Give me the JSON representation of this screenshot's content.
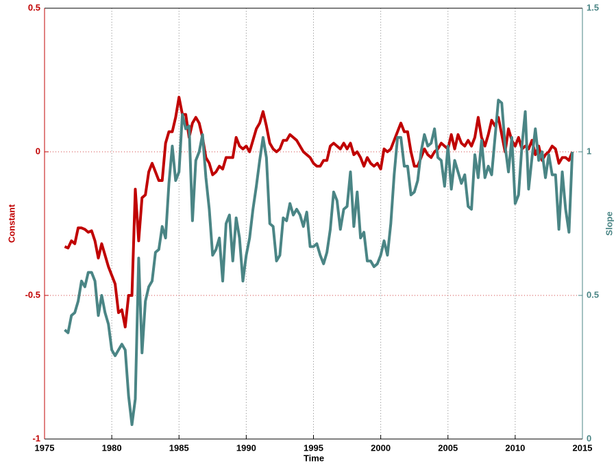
{
  "chart_data": {
    "type": "line",
    "xlabel": "Time",
    "ylabel": "Constant",
    "y2label": "Slope",
    "xlim": [
      1975,
      2015
    ],
    "xticks": [
      1975,
      1980,
      1985,
      1990,
      1995,
      2000,
      2005,
      2010,
      2015
    ],
    "ylim": [
      -1,
      0.5
    ],
    "yticks": [
      -1,
      -0.5,
      0,
      0.5
    ],
    "y2lim": [
      0,
      1.5
    ],
    "y2ticks": [
      0,
      0.5,
      1,
      1.5
    ],
    "grid": true,
    "x": [
      1976.5,
      1976.75,
      1977,
      1977.25,
      1977.5,
      1977.75,
      1978,
      1978.25,
      1978.5,
      1978.75,
      1979,
      1979.25,
      1979.5,
      1979.75,
      1980,
      1980.25,
      1980.5,
      1980.75,
      1981,
      1981.25,
      1981.5,
      1981.75,
      1982,
      1982.25,
      1982.5,
      1982.75,
      1983,
      1983.25,
      1983.5,
      1983.75,
      1984,
      1984.25,
      1984.5,
      1984.75,
      1985,
      1985.25,
      1985.5,
      1985.75,
      1986,
      1986.25,
      1986.5,
      1986.75,
      1987,
      1987.25,
      1987.5,
      1987.75,
      1988,
      1988.25,
      1988.5,
      1988.75,
      1989,
      1989.25,
      1989.5,
      1989.75,
      1990,
      1990.25,
      1990.5,
      1990.75,
      1991,
      1991.25,
      1991.5,
      1991.75,
      1992,
      1992.25,
      1992.5,
      1992.75,
      1993,
      1993.25,
      1993.5,
      1993.75,
      1994,
      1994.25,
      1994.5,
      1994.75,
      1995,
      1995.25,
      1995.5,
      1995.75,
      1996,
      1996.25,
      1996.5,
      1996.75,
      1997,
      1997.25,
      1997.5,
      1997.75,
      1998,
      1998.25,
      1998.5,
      1998.75,
      1999,
      1999.25,
      1999.5,
      1999.75,
      2000,
      2000.25,
      2000.5,
      2000.75,
      2001,
      2001.25,
      2001.5,
      2001.75,
      2002,
      2002.25,
      2002.5,
      2002.75,
      2003,
      2003.25,
      2003.5,
      2003.75,
      2004,
      2004.25,
      2004.5,
      2004.75,
      2005,
      2005.25,
      2005.5,
      2005.75,
      2006,
      2006.25,
      2006.5,
      2006.75,
      2007,
      2007.25,
      2007.5,
      2007.75,
      2008,
      2008.25,
      2008.5,
      2008.75,
      2009,
      2009.25,
      2009.5,
      2009.75,
      2010,
      2010.25,
      2010.5,
      2010.75,
      2011,
      2011.25,
      2011.5,
      2011.75,
      2012,
      2012.25,
      2012.5,
      2012.75,
      2013,
      2013.25,
      2013.5,
      2013.75,
      2014,
      2014.25
    ],
    "series": [
      {
        "name": "Constant",
        "color": "#c00000",
        "axis": "y",
        "values": [
          -0.33,
          -0.335,
          -0.31,
          -0.32,
          -0.265,
          -0.265,
          -0.27,
          -0.28,
          -0.275,
          -0.31,
          -0.37,
          -0.32,
          -0.36,
          -0.4,
          -0.43,
          -0.46,
          -0.56,
          -0.55,
          -0.61,
          -0.5,
          -0.5,
          -0.13,
          -0.31,
          -0.16,
          -0.15,
          -0.07,
          -0.04,
          -0.07,
          -0.1,
          -0.1,
          0.03,
          0.07,
          0.07,
          0.12,
          0.19,
          0.13,
          0.13,
          0.05,
          0.1,
          0.12,
          0.1,
          0.05,
          -0.02,
          -0.04,
          -0.08,
          -0.07,
          -0.05,
          -0.06,
          -0.02,
          -0.02,
          -0.02,
          0.05,
          0.02,
          0.01,
          0.02,
          0,
          0.04,
          0.08,
          0.1,
          0.14,
          0.09,
          0.03,
          0.01,
          0,
          0.01,
          0.04,
          0.04,
          0.06,
          0.05,
          0.04,
          0.02,
          0,
          -0.01,
          -0.02,
          -0.04,
          -0.05,
          -0.05,
          -0.03,
          -0.03,
          0.02,
          0.03,
          0.02,
          0.01,
          0.03,
          0.01,
          0.03,
          -0.01,
          0,
          -0.02,
          -0.05,
          -0.02,
          -0.04,
          -0.05,
          -0.04,
          -0.06,
          0.01,
          0,
          0.01,
          0.04,
          0.07,
          0.1,
          0.07,
          0.07,
          0,
          -0.05,
          -0.05,
          -0.02,
          0.01,
          -0.01,
          -0.02,
          0,
          0.01,
          0.03,
          0.02,
          0.01,
          0.06,
          0.01,
          0.06,
          0.03,
          0.02,
          0.04,
          0.02,
          0.05,
          0.12,
          0.05,
          0.02,
          0.06,
          0.11,
          0.09,
          0.12,
          0.06,
          0,
          0.08,
          0.04,
          0.02,
          0.05,
          0.01,
          0.02,
          0.01,
          0.04,
          -0.01,
          0.02,
          -0.03,
          -0.01,
          0,
          0.02,
          0.01,
          -0.04,
          -0.02,
          -0.02,
          -0.03,
          0
        ]
      },
      {
        "name": "Slope",
        "color": "#4a8585",
        "axis": "y2",
        "values": [
          0.38,
          0.37,
          0.43,
          0.44,
          0.48,
          0.55,
          0.53,
          0.58,
          0.58,
          0.55,
          0.43,
          0.5,
          0.44,
          0.4,
          0.31,
          0.29,
          0.31,
          0.33,
          0.31,
          0.15,
          0.05,
          0.14,
          0.63,
          0.3,
          0.48,
          0.53,
          0.55,
          0.65,
          0.66,
          0.74,
          0.7,
          0.89,
          1.02,
          0.9,
          0.93,
          1.13,
          1.08,
          1.09,
          0.76,
          0.97,
          1.0,
          1.06,
          0.91,
          0.8,
          0.64,
          0.66,
          0.7,
          0.55,
          0.75,
          0.78,
          0.62,
          0.77,
          0.7,
          0.55,
          0.64,
          0.7,
          0.8,
          0.88,
          0.97,
          1.05,
          0.98,
          0.75,
          0.74,
          0.62,
          0.64,
          0.77,
          0.76,
          0.82,
          0.78,
          0.8,
          0.78,
          0.74,
          0.79,
          0.67,
          0.67,
          0.68,
          0.64,
          0.61,
          0.65,
          0.73,
          0.86,
          0.83,
          0.73,
          0.8,
          0.81,
          0.93,
          0.74,
          0.86,
          0.7,
          0.72,
          0.62,
          0.62,
          0.6,
          0.61,
          0.64,
          0.69,
          0.64,
          0.75,
          0.92,
          1.05,
          1.05,
          0.95,
          0.95,
          0.85,
          0.86,
          0.9,
          1.0,
          1.06,
          1.02,
          1.03,
          1.08,
          0.98,
          0.97,
          0.88,
          1.02,
          0.87,
          0.97,
          0.93,
          0.89,
          0.92,
          0.81,
          0.8,
          0.99,
          0.91,
          1.04,
          0.91,
          0.95,
          0.92,
          1.05,
          1.18,
          1.17,
          1.02,
          0.93,
          1.05,
          0.82,
          0.85,
          1.02,
          1.14,
          0.87,
          0.98,
          1.08,
          0.97,
          1.0,
          0.91,
          0.99,
          0.92,
          0.92,
          0.73,
          0.93,
          0.8,
          0.72,
          1.0
        ]
      }
    ]
  }
}
